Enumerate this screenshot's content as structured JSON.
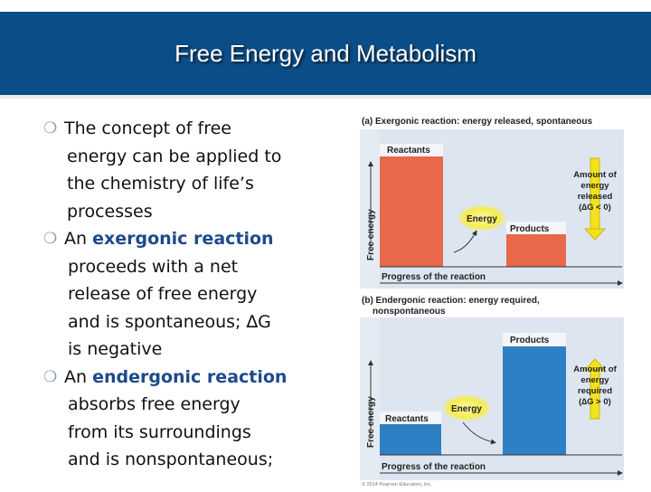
{
  "slide": {
    "title": "Free Energy and Metabolism"
  },
  "bullets": [
    {
      "lines": [
        "The concept of free",
        "energy can be applied to",
        "the chemistry of life’s",
        "processes"
      ]
    },
    {
      "prefix": "An ",
      "keyword": "exergonic reaction",
      "lines": [
        "proceeds with a net",
        "release of free energy",
        "and is spontaneous; ∆G",
        "is negative"
      ]
    },
    {
      "prefix": "An ",
      "keyword": "endergonic reaction",
      "lines": [
        "absorbs free energy",
        "from its surroundings",
        "and is nonspontaneous;"
      ]
    }
  ],
  "figure": {
    "panel_a": {
      "caption": "(a) Exergonic reaction: energy released, spontaneous",
      "reactants_label": "Reactants",
      "products_label": "Products",
      "energy_label": "Energy",
      "amount_label": [
        "Amount of",
        "energy",
        "released",
        "(∆G < 0)"
      ],
      "y_axis_label": "Free energy",
      "x_axis_label": "Progress of the reaction"
    },
    "panel_b": {
      "caption_lines": [
        "(b) Endergonic reaction: energy required,",
        "nonspontaneous"
      ],
      "reactants_label": "Reactants",
      "products_label": "Products",
      "energy_label": "Energy",
      "amount_label": [
        "Amount of",
        "energy",
        "required",
        "(∆G > 0)"
      ],
      "y_axis_label": "Free energy",
      "x_axis_label": "Progress of the reaction"
    },
    "copyright": "© 2014 Pearson Education, Inc.",
    "colors": {
      "exergonic_reactants": "#e8684c",
      "exergonic_products": "#e8684c",
      "endergonic_bars": "#2f7fc4",
      "arrow": "#f2e21c",
      "energy_glow": "#f6ef5a"
    }
  }
}
